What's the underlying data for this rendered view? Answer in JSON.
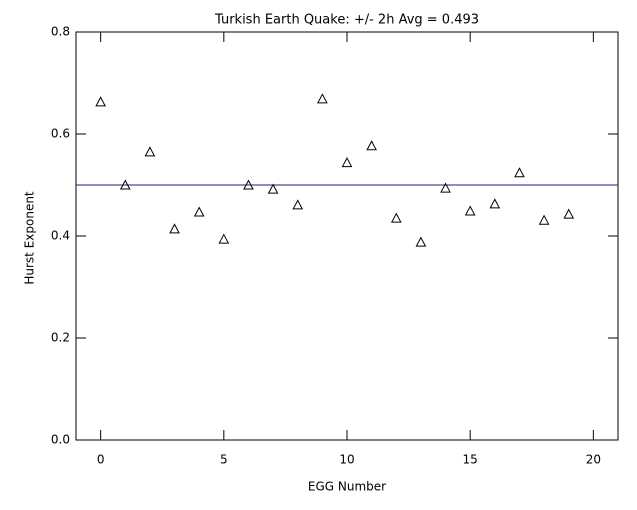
{
  "chart_data": {
    "type": "scatter",
    "title": "Turkish Earth Quake: +/- 2h Avg = 0.493",
    "x_label": "EGG Number",
    "y_label": "Hurst Exponent",
    "x": [
      0,
      1,
      2,
      3,
      4,
      5,
      6,
      7,
      8,
      9,
      10,
      11,
      12,
      13,
      14,
      15,
      16,
      17,
      18,
      19
    ],
    "series": [
      {
        "color": "#000000",
        "marker": "triangle",
        "values": [
          0.662,
          0.499,
          0.564,
          0.413,
          0.446,
          0.393,
          0.499,
          0.491,
          0.46,
          0.668,
          0.543,
          0.576,
          0.434,
          0.387,
          0.493,
          0.448,
          0.462,
          0.523,
          0.43,
          0.442
        ]
      }
    ],
    "reference_line": {
      "value": 0.5,
      "color": "#1c1c8c"
    },
    "xlim": [
      -1,
      21
    ],
    "ylim": [
      0,
      0.8
    ],
    "xticks": [
      0,
      5,
      10,
      15,
      20
    ],
    "yticks": [
      {
        "value": 0,
        "label": "0.0"
      },
      0.2,
      0.4,
      0.6,
      0.8
    ],
    "grid": false
  }
}
